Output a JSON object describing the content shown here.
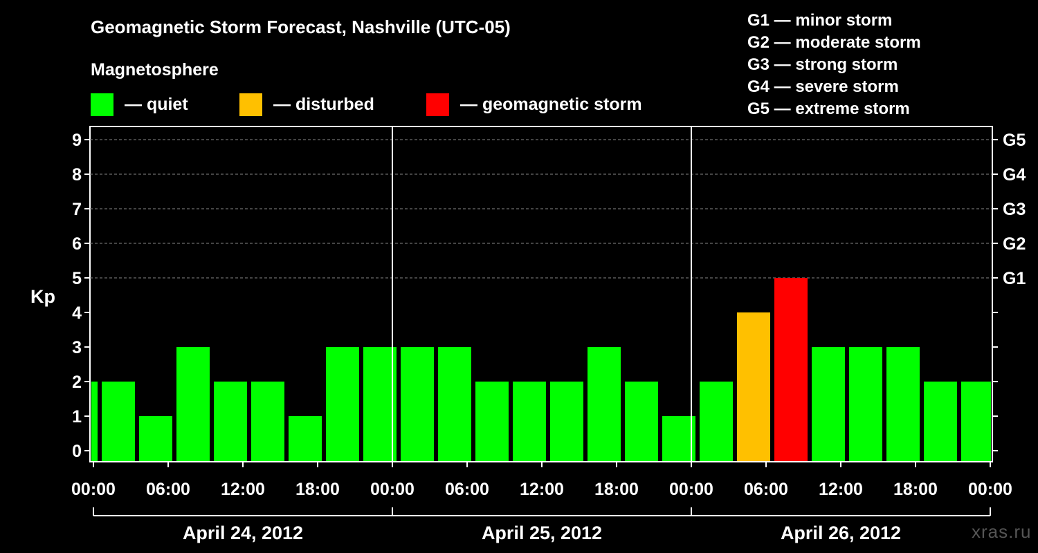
{
  "title": "Geomagnetic Storm Forecast, Nashville (UTC-05)",
  "subtitle": "Magnetosphere",
  "legend": [
    {
      "label": "— quiet",
      "color": "#00ff00"
    },
    {
      "label": "— disturbed",
      "color": "#ffc000"
    },
    {
      "label": "— geomagnetic storm",
      "color": "#ff0000"
    }
  ],
  "storm_scale": [
    "G1 — minor storm",
    "G2 — moderate storm",
    "G3 — strong storm",
    "G4 — severe storm",
    "G5 — extreme storm"
  ],
  "watermark": "xras.ru",
  "chart_data": {
    "type": "bar",
    "title": "Geomagnetic Storm Forecast, Nashville (UTC-05)",
    "ylabel": "Kp",
    "ylim": [
      0,
      9
    ],
    "grid": "horizontal dashed at Kp 5–9",
    "y_ticks": [
      "0",
      "1",
      "2",
      "3",
      "4",
      "5",
      "6",
      "7",
      "8",
      "9"
    ],
    "right_ticks": [
      {
        "kp": 5,
        "label": "G1"
      },
      {
        "kp": 6,
        "label": "G2"
      },
      {
        "kp": 7,
        "label": "G3"
      },
      {
        "kp": 8,
        "label": "G4"
      },
      {
        "kp": 9,
        "label": "G5"
      }
    ],
    "x_ticks": [
      "00:00",
      "06:00",
      "12:00",
      "18:00",
      "00:00",
      "06:00",
      "12:00",
      "18:00",
      "00:00",
      "06:00",
      "12:00",
      "18:00",
      "00:00"
    ],
    "days": [
      "April 24, 2012",
      "April 25, 2012",
      "April 26, 2012"
    ],
    "interval_hours": 3,
    "first_bar_offset_hours": -1,
    "values": [
      2,
      2,
      1,
      3,
      2,
      2,
      1,
      3,
      3,
      3,
      3,
      2,
      2,
      2,
      3,
      2,
      1,
      2,
      4,
      5,
      3,
      3,
      3,
      2,
      2
    ],
    "status": [
      "quiet",
      "quiet",
      "quiet",
      "quiet",
      "quiet",
      "quiet",
      "quiet",
      "quiet",
      "quiet",
      "quiet",
      "quiet",
      "quiet",
      "quiet",
      "quiet",
      "quiet",
      "quiet",
      "quiet",
      "quiet",
      "disturbed",
      "storm",
      "quiet",
      "quiet",
      "quiet",
      "quiet",
      "quiet"
    ],
    "colors": {
      "quiet": "#00ff00",
      "disturbed": "#ffc000",
      "storm": "#ff0000"
    }
  }
}
